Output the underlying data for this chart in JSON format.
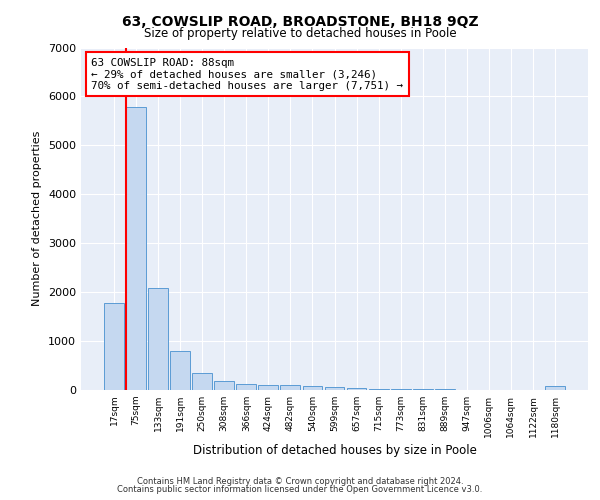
{
  "title": "63, COWSLIP ROAD, BROADSTONE, BH18 9QZ",
  "subtitle": "Size of property relative to detached houses in Poole",
  "xlabel": "Distribution of detached houses by size in Poole",
  "ylabel": "Number of detached properties",
  "categories": [
    "17sqm",
    "75sqm",
    "133sqm",
    "191sqm",
    "250sqm",
    "308sqm",
    "366sqm",
    "424sqm",
    "482sqm",
    "540sqm",
    "599sqm",
    "657sqm",
    "715sqm",
    "773sqm",
    "831sqm",
    "889sqm",
    "947sqm",
    "1006sqm",
    "1064sqm",
    "1122sqm",
    "1180sqm"
  ],
  "bar_heights": [
    1780,
    5780,
    2080,
    800,
    340,
    190,
    120,
    110,
    95,
    80,
    55,
    40,
    30,
    25,
    20,
    15,
    10,
    8,
    5,
    3,
    80
  ],
  "bar_color": "#c5d8f0",
  "bar_edge_color": "#5b9bd5",
  "annotation_text": "63 COWSLIP ROAD: 88sqm\n← 29% of detached houses are smaller (3,246)\n70% of semi-detached houses are larger (7,751) →",
  "ylim": [
    0,
    7000
  ],
  "yticks": [
    0,
    1000,
    2000,
    3000,
    4000,
    5000,
    6000,
    7000
  ],
  "background_color": "#e8eef8",
  "grid_color": "#ffffff",
  "footer_line1": "Contains HM Land Registry data © Crown copyright and database right 2024.",
  "footer_line2": "Contains public sector information licensed under the Open Government Licence v3.0."
}
